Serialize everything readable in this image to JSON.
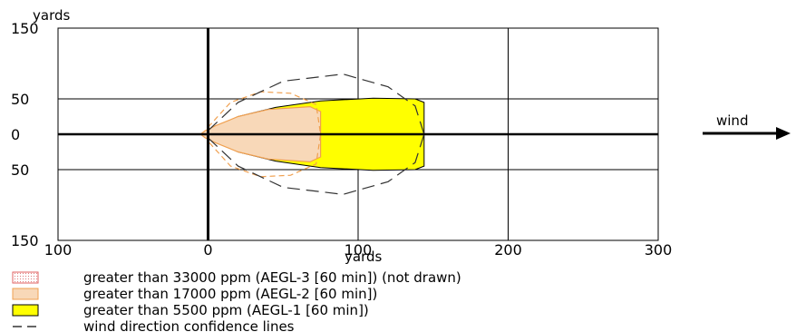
{
  "chart_data": {
    "type": "area",
    "y_axis_label": "yards",
    "x_axis_label": "yards",
    "xlim": [
      -100,
      300
    ],
    "ylim": [
      -150,
      150
    ],
    "x_ticks": [
      -100,
      0,
      100,
      200,
      300
    ],
    "x_tick_labels": [
      "100",
      "0",
      "100",
      "200",
      "300"
    ],
    "y_ticks": [
      150,
      50,
      0,
      -50,
      -150
    ],
    "y_tick_labels": [
      "150",
      "50",
      "0",
      "50",
      "150"
    ],
    "grid": true,
    "wind_label": "wind",
    "wind_direction": "east",
    "zones": [
      {
        "name": "greater than 5500 ppm (AEGL-1 [60 min])",
        "color": "#ffff00",
        "stroke": "#000000",
        "polygon": [
          [
            0,
            0
          ],
          [
            5,
            10
          ],
          [
            20,
            25
          ],
          [
            45,
            38
          ],
          [
            75,
            47
          ],
          [
            110,
            51
          ],
          [
            138,
            50
          ],
          [
            144,
            45
          ],
          [
            144,
            -45
          ],
          [
            138,
            -50
          ],
          [
            110,
            -51
          ],
          [
            75,
            -47
          ],
          [
            45,
            -38
          ],
          [
            20,
            -25
          ],
          [
            5,
            -10
          ]
        ]
      },
      {
        "name": "greater than 17000 ppm (AEGL-2 [60 min])",
        "color": "#f8d8b8",
        "stroke": "#f0a050",
        "polygon": [
          [
            -5,
            0
          ],
          [
            -2,
            5
          ],
          [
            5,
            12
          ],
          [
            20,
            25
          ],
          [
            40,
            35
          ],
          [
            68,
            39
          ],
          [
            75,
            32
          ],
          [
            75,
            -32
          ],
          [
            68,
            -39
          ],
          [
            40,
            -35
          ],
          [
            20,
            -25
          ],
          [
            5,
            -12
          ],
          [
            -2,
            -5
          ]
        ]
      }
    ],
    "confidence_lines": [
      [
        [
          0,
          5
        ],
        [
          20,
          45
        ],
        [
          50,
          75
        ],
        [
          90,
          85
        ],
        [
          120,
          67
        ],
        [
          138,
          40
        ],
        [
          144,
          0
        ]
      ],
      [
        [
          0,
          -5
        ],
        [
          20,
          -45
        ],
        [
          50,
          -75
        ],
        [
          90,
          -85
        ],
        [
          120,
          -67
        ],
        [
          138,
          -40
        ],
        [
          144,
          0
        ]
      ]
    ],
    "aegl2_dashed_outline": [
      [
        0,
        10
      ],
      [
        15,
        45
      ],
      [
        35,
        60
      ],
      [
        55,
        58
      ],
      [
        72,
        42
      ],
      [
        75,
        0
      ],
      [
        72,
        -42
      ],
      [
        55,
        -58
      ],
      [
        35,
        -60
      ],
      [
        15,
        -45
      ],
      [
        0,
        -10
      ]
    ],
    "legend": [
      {
        "label": "greater than 33000 ppm (AEGL-3 [60 min]) (not drawn)",
        "swatch": "dotted-red"
      },
      {
        "label": "greater than 17000 ppm (AEGL-2 [60 min])",
        "swatch": "orange"
      },
      {
        "label": "greater than 5500 ppm (AEGL-1 [60 min])",
        "swatch": "yellow"
      },
      {
        "label": "wind direction confidence lines",
        "swatch": "dashed-line"
      }
    ]
  }
}
